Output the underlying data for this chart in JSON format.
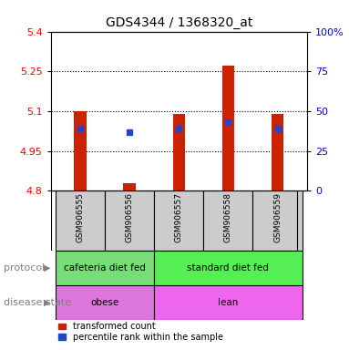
{
  "title": "GDS4344 / 1368320_at",
  "samples": [
    "GSM906555",
    "GSM906556",
    "GSM906557",
    "GSM906558",
    "GSM906559"
  ],
  "transformed_counts": [
    5.1,
    4.83,
    5.09,
    5.27,
    5.09
  ],
  "percentile_ranks_y": [
    5.035,
    5.02,
    5.035,
    5.06,
    5.035
  ],
  "bar_bottom": 4.8,
  "ylim": [
    4.8,
    5.4
  ],
  "yticks_left": [
    4.8,
    4.95,
    5.1,
    5.25,
    5.4
  ],
  "yticks_right": [
    0,
    25,
    50,
    75,
    100
  ],
  "dotted_lines": [
    4.95,
    5.1,
    5.25
  ],
  "protocol": [
    "cafeteria diet fed",
    "cafeteria diet fed",
    "standard diet fed",
    "standard diet fed",
    "standard diet fed"
  ],
  "disease_state": [
    "obese",
    "obese",
    "lean",
    "lean",
    "lean"
  ],
  "protocol_colors": {
    "cafeteria diet fed": "#77dd77",
    "standard diet fed": "#55ee55"
  },
  "disease_colors": {
    "obese": "#dd77dd",
    "lean": "#ee66ee"
  },
  "bar_color": "#cc2200",
  "blue_dot_color": "#2244cc",
  "sample_bg_color": "#cccccc",
  "legend_red_label": "transformed count",
  "legend_blue_label": "percentile rank within the sample",
  "protocol_label": "protocol",
  "disease_label": "disease state",
  "bar_width": 0.25
}
